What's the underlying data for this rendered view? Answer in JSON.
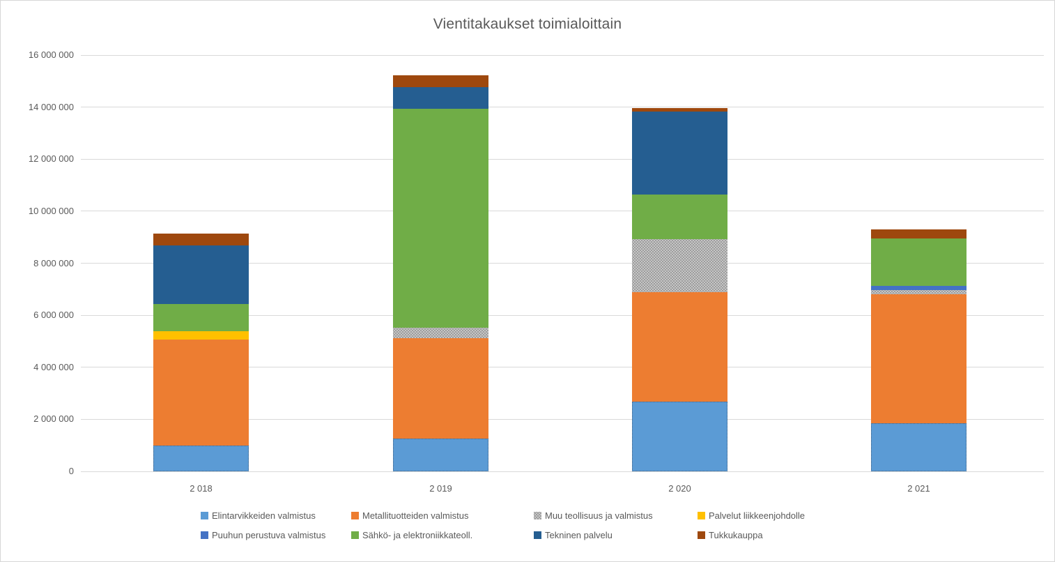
{
  "title": "Vientitakaukset toimialoittain",
  "colors": {
    "text": "#595959",
    "gridline": "#d9d9d9"
  },
  "chart_data": {
    "type": "bar",
    "stacked": true,
    "title": "Vientitakaukset toimialoittain",
    "xlabel": "",
    "ylabel": "",
    "ylim": [
      0,
      16000000
    ],
    "ytick_step": 2000000,
    "ytick_labels": [
      "0",
      "2 000 000",
      "4 000 000",
      "6 000 000",
      "8 000 000",
      "10 000 000",
      "12 000 000",
      "14 000 000",
      "16 000 000"
    ],
    "grid": true,
    "legend_position": "bottom",
    "categories": [
      "2 018",
      "2 019",
      "2 020",
      "2 021"
    ],
    "series": [
      {
        "name": "Elintarvikkeiden valmistus",
        "color": "#5B9BD5",
        "dotted_border": true,
        "values": [
          1000000,
          1250000,
          2670000,
          1860000
        ]
      },
      {
        "name": "Metallituotteiden valmistus",
        "color": "#ED7D31",
        "values": [
          4070000,
          3870000,
          4230000,
          4960000
        ]
      },
      {
        "name": "Muu teollisuus ja valmistus",
        "color": "#ACACAC",
        "pattern": "dotted",
        "values": [
          0,
          410000,
          2030000,
          160000
        ]
      },
      {
        "name": "Palvelut liikkeenjohdolle",
        "color": "#FFC000",
        "values": [
          320000,
          0,
          0,
          0
        ]
      },
      {
        "name": "Puuhun perustuva valmistus",
        "color": "#4472C4",
        "values": [
          0,
          0,
          0,
          140000
        ]
      },
      {
        "name": "Sähkö- ja elektroniikkateoll.",
        "color": "#70AD47",
        "values": [
          1040000,
          8420000,
          1720000,
          1840000
        ]
      },
      {
        "name": "Tekninen palvelu",
        "color": "#255E91",
        "values": [
          2250000,
          830000,
          3190000,
          0
        ]
      },
      {
        "name": "Tukkukauppa",
        "color": "#9E480E",
        "values": [
          470000,
          440000,
          130000,
          350000
        ]
      }
    ],
    "totals": [
      9150000,
      15220000,
      13970000,
      9310000
    ]
  }
}
